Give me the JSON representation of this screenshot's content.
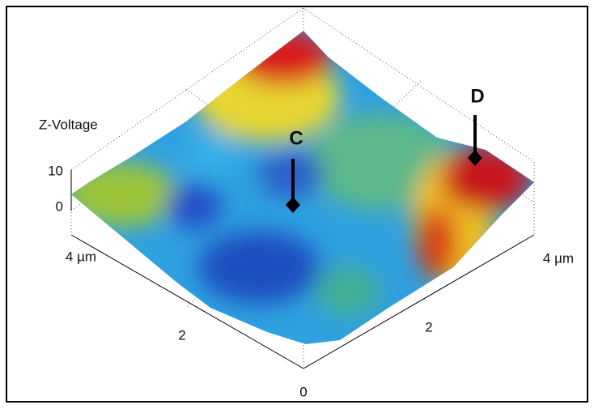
{
  "z_axis": {
    "label": "Z-Voltage",
    "ticks": [
      "10",
      "0"
    ]
  },
  "left_axis": {
    "ticks": [
      "4 µm",
      "2"
    ]
  },
  "origin_label": "0",
  "right_axis": {
    "ticks": [
      "2",
      "4 µm"
    ]
  },
  "markers": [
    {
      "label": "C"
    },
    {
      "label": "D"
    }
  ]
}
